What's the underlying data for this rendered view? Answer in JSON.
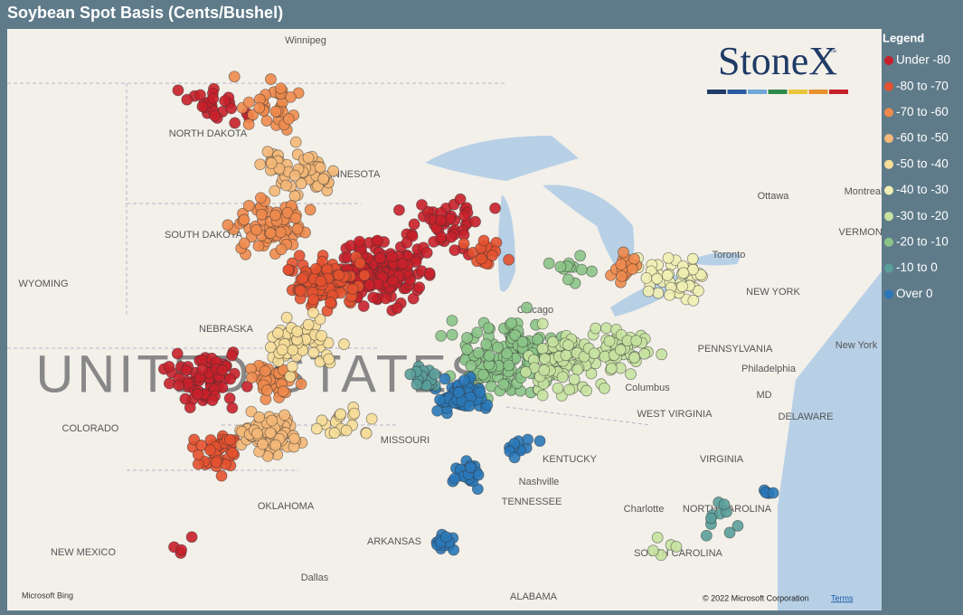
{
  "header": {
    "title": "Soybean Spot Basis (Cents/Bushel)"
  },
  "legend": {
    "title": "Legend",
    "items": [
      {
        "label": "Under -80",
        "color": "#c8202a"
      },
      {
        "label": "-80 to -70",
        "color": "#e4512f"
      },
      {
        "label": "-70 to -60",
        "color": "#ee8a4c"
      },
      {
        "label": "-60 to -50",
        "color": "#f4b878"
      },
      {
        "label": "-50 to -40",
        "color": "#f6dd98"
      },
      {
        "label": "-40 to -30",
        "color": "#f1f0b4"
      },
      {
        "label": "-30 to -20",
        "color": "#c6e2a0"
      },
      {
        "label": "-20 to -10",
        "color": "#8bc487"
      },
      {
        "label": "-10 to 0",
        "color": "#5a9f9b"
      },
      {
        "label": "Over 0",
        "color": "#2a78b8"
      }
    ]
  },
  "logo": {
    "text": "StoneX",
    "tm": "™"
  },
  "map": {
    "labels": [
      "Winnipeg",
      "NORTH DAKOTA",
      "MINNESOTA",
      "SOUTH DAKOTA",
      "WYOMING",
      "NEBRASKA",
      "COLORADO",
      "MISSOURI",
      "KENTUCKY",
      "TENNESSEE",
      "Nashville",
      "ARKANSAS",
      "OKLAHOMA",
      "NEW MEXICO",
      "Dallas",
      "ALABAMA",
      "Charlotte",
      "NORTH CAROLINA",
      "SOUTH CAROLINA",
      "VIRGINIA",
      "WEST VIRGINIA",
      "DELAWARE",
      "MD",
      "Philadelphia",
      "New York",
      "NEW YORK",
      "PENNSYLVANIA",
      "Ottawa",
      "Montreal",
      "VERMONT",
      "Toronto",
      "Chicago",
      "Columbus"
    ],
    "country": "UNITED STATES"
  },
  "attribution": {
    "provider": "Microsoft Bing",
    "copyright": "© 2022 Microsoft Corporation",
    "terms": "Terms"
  }
}
